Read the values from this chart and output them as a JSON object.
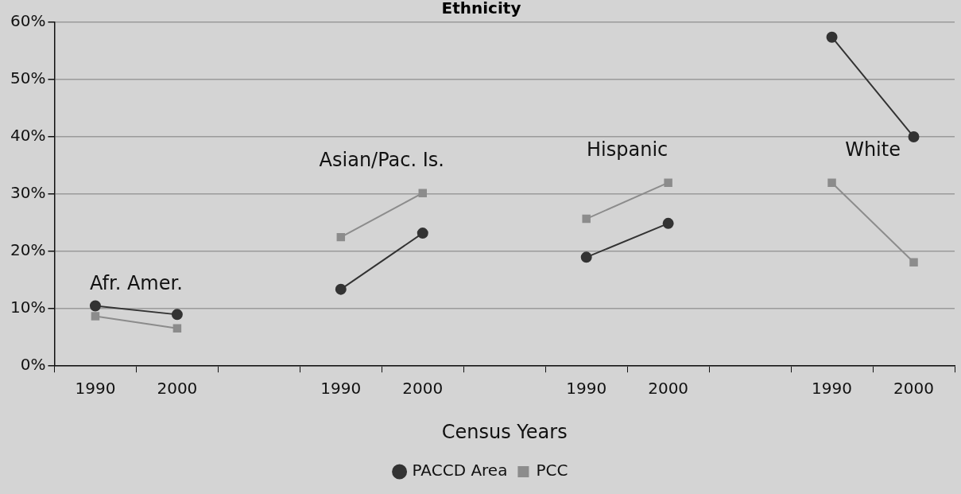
{
  "chart_data": {
    "type": "line",
    "title": "Ethnicity",
    "xlabel": "Census Years",
    "categories": [
      "1990",
      "2000",
      null,
      "1990",
      "2000",
      null,
      "1990",
      "2000",
      null,
      "1990",
      "2000"
    ],
    "series": [
      {
        "name": "PACCD Area",
        "color": "#333333",
        "marker": "circle",
        "values": [
          10.5,
          9.0,
          null,
          13.4,
          23.2,
          null,
          19.0,
          24.9,
          null,
          57.4,
          40.0
        ]
      },
      {
        "name": "PCC",
        "color": "#8c8c8c",
        "marker": "square",
        "values": [
          8.7,
          6.6,
          null,
          22.5,
          30.2,
          null,
          25.7,
          32.0,
          null,
          32.0,
          18.1
        ]
      }
    ],
    "annotations": [
      "Afr. Amer.",
      "Asian/Pac. Is.",
      "Hispanic",
      "White"
    ],
    "ylim": [
      0,
      60
    ],
    "yticks": [
      {
        "value": 0,
        "label": "0%"
      },
      {
        "value": 10,
        "label": "10%"
      },
      {
        "value": 20,
        "label": "20%"
      },
      {
        "value": 30,
        "label": "30%"
      },
      {
        "value": 40,
        "label": "40%"
      },
      {
        "value": 50,
        "label": "50%"
      },
      {
        "value": 60,
        "label": "60%"
      }
    ],
    "grid": "y",
    "legend": "bottom",
    "line_style": "solid"
  }
}
